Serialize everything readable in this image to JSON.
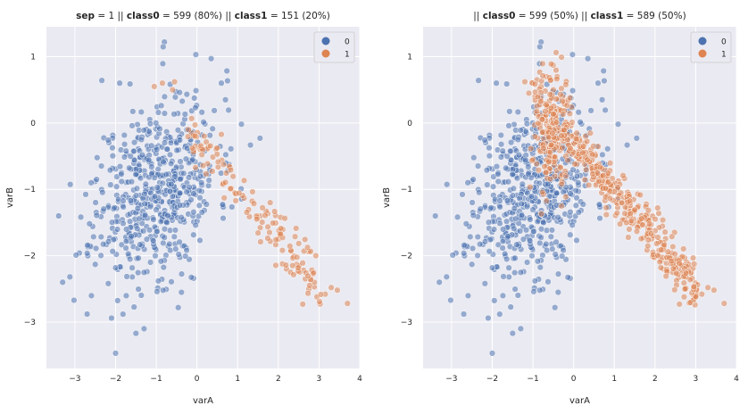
{
  "colors": {
    "class0": "#4c72b0",
    "class1": "#dd8452",
    "panel_bg": "#eaeaf2",
    "grid": "#ffffff"
  },
  "chart_data": [
    {
      "type": "scatter",
      "title_parts": {
        "p1_bold": "sep",
        "p1": " = 1 || ",
        "p2_bold": "class0",
        "p2": " = 599 (80%)  || ",
        "p3_bold": "class1",
        "p3": " = 151 (20%)"
      },
      "xlabel": "varA",
      "ylabel": "varB",
      "xlim": [
        -3.7,
        4.0
      ],
      "ylim": [
        -3.7,
        1.45
      ],
      "xticks": [
        -3,
        -2,
        -1,
        0,
        1,
        2,
        3,
        4
      ],
      "yticks": [
        -3,
        -2,
        -1,
        0,
        1
      ],
      "xtick_labels": [
        "−3",
        "−2",
        "−1",
        "0",
        "1",
        "2",
        "3",
        "4"
      ],
      "ytick_labels": [
        "−3",
        "−2",
        "−1",
        "0",
        "1"
      ],
      "legend": {
        "position": "top-right",
        "entries": [
          "0",
          "1"
        ]
      },
      "series": [
        {
          "name": "0",
          "count": 599,
          "seed": 11,
          "center": [
            -1.0,
            -1.0
          ],
          "spread": [
            0.75,
            0.68
          ],
          "points": [
            [
              -0.8,
              1.22
            ],
            [
              0.35,
              0.97
            ],
            [
              -3.4,
              -1.4
            ],
            [
              -3.3,
              -2.4
            ],
            [
              -2.0,
              -3.47
            ],
            [
              -1.3,
              -3.1
            ],
            [
              -2.7,
              -2.88
            ],
            [
              -2.1,
              -2.94
            ],
            [
              1.55,
              -0.23
            ],
            [
              0.7,
              0.35
            ],
            [
              0.6,
              0.6
            ],
            [
              -1.9,
              0.6
            ],
            [
              -2.5,
              -0.88
            ],
            [
              -2.6,
              -0.9
            ]
          ]
        },
        {
          "name": "1",
          "count": 151,
          "seed": 23,
          "center": [
            0.9,
            -1.0
          ],
          "spread": [
            0.75,
            0.45
          ],
          "points": [
            [
              3.7,
              -2.72
            ],
            [
              3.45,
              -2.52
            ],
            [
              3.15,
              -2.58
            ],
            [
              3.3,
              -2.48
            ],
            [
              2.95,
              -2.62
            ],
            [
              2.75,
              -2.5
            ],
            [
              2.6,
              -2.73
            ],
            [
              2.62,
              -2.22
            ],
            [
              2.68,
              -2.26
            ],
            [
              2.2,
              -2.2
            ],
            [
              2.3,
              -2.25
            ],
            [
              2.1,
              -1.92
            ],
            [
              1.8,
              -1.2
            ],
            [
              2.0,
              -1.75
            ],
            [
              -0.55,
              0.62
            ],
            [
              -0.85,
              0.6
            ],
            [
              -1.05,
              0.55
            ],
            [
              -0.6,
              0.5
            ]
          ]
        }
      ]
    },
    {
      "type": "scatter",
      "title_parts": {
        "p1_bold": "",
        "p1": "|| ",
        "p2_bold": "class0",
        "p2": " = 599 (50%)  || ",
        "p3_bold": "class1",
        "p3": " = 589 (50%)"
      },
      "xlabel": "varA",
      "ylabel": "varB",
      "xlim": [
        -3.7,
        4.0
      ],
      "ylim": [
        -3.7,
        1.45
      ],
      "xticks": [
        -3,
        -2,
        -1,
        0,
        1,
        2,
        3,
        4
      ],
      "yticks": [
        -3,
        -2,
        -1,
        0,
        1
      ],
      "xtick_labels": [
        "−3",
        "−2",
        "−1",
        "0",
        "1",
        "2",
        "3",
        "4"
      ],
      "ytick_labels": [
        "−3",
        "−2",
        "−1",
        "0",
        "1"
      ],
      "legend": {
        "position": "top-right",
        "entries": [
          "0",
          "1"
        ]
      },
      "series": [
        {
          "name": "0",
          "count": 599,
          "seed": 11,
          "center": [
            -1.0,
            -1.0
          ],
          "spread": [
            0.75,
            0.68
          ],
          "points": [
            [
              -0.8,
              1.22
            ],
            [
              0.35,
              0.97
            ],
            [
              -3.4,
              -1.4
            ],
            [
              -3.3,
              -2.4
            ],
            [
              -2.0,
              -3.47
            ],
            [
              -1.3,
              -3.1
            ],
            [
              -2.7,
              -2.88
            ],
            [
              -2.1,
              -2.94
            ],
            [
              1.55,
              -0.23
            ],
            [
              0.7,
              0.35
            ],
            [
              0.6,
              0.6
            ],
            [
              -1.9,
              0.6
            ],
            [
              -2.5,
              -0.88
            ],
            [
              -2.6,
              -0.9
            ]
          ]
        },
        {
          "name": "1",
          "count": 589,
          "seed": 37,
          "center": [
            0.6,
            -0.7
          ],
          "spread": [
            0.8,
            0.55
          ],
          "points": [
            [
              3.7,
              -2.72
            ],
            [
              3.45,
              -2.52
            ],
            [
              3.15,
              -2.58
            ],
            [
              3.3,
              -2.48
            ],
            [
              2.95,
              -2.62
            ],
            [
              2.75,
              -2.5
            ],
            [
              2.6,
              -2.73
            ],
            [
              2.62,
              -2.22
            ],
            [
              2.68,
              -2.26
            ],
            [
              2.2,
              -2.2
            ],
            [
              2.3,
              -2.25
            ],
            [
              2.1,
              -1.92
            ],
            [
              -0.9,
              0.65
            ],
            [
              -1.0,
              0.6
            ],
            [
              -0.8,
              0.55
            ],
            [
              -1.2,
              0.62
            ],
            [
              -0.7,
              0.48
            ],
            [
              -0.5,
              0.5
            ],
            [
              -0.3,
              0.52
            ],
            [
              -1.1,
              0.45
            ],
            [
              -0.95,
              0.4
            ]
          ]
        }
      ]
    }
  ]
}
